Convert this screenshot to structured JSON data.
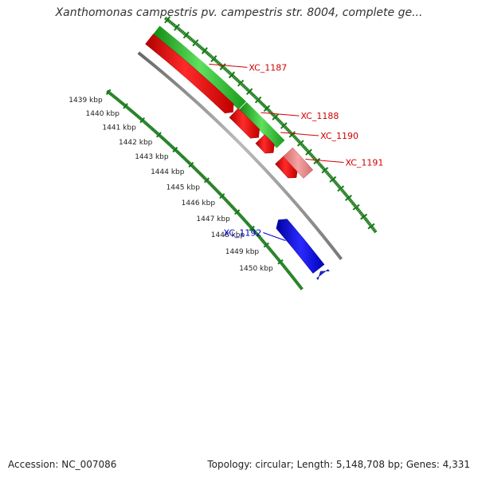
{
  "header": {
    "title": "Xanthomonas campestris pv. campestris str. 8004, complete ge..."
  },
  "footer": {
    "accession": "Accession: NC_007086",
    "summary": "Topology: circular; Length: 5,148,708 bp; Genes: 4,331"
  },
  "colors": {
    "background": "#ffffff",
    "tick": "#1a7a1a",
    "backbone": "#888888",
    "forward_cds": "#ff0000",
    "forward_pseudo": "#f08080",
    "reverse_cds": "#0000ff",
    "second_track": "#22b022",
    "gene_label_red": "#d00000",
    "gene_label_blue": "#0000cc",
    "tick_label": "#222222"
  },
  "ruler": {
    "unit": "kbp",
    "visible_ticks": [
      "1439 kbp",
      "1440 kbp",
      "1441 kbp",
      "1442 kbp",
      "1443 kbp",
      "1444 kbp",
      "1445 kbp",
      "1446 kbp",
      "1447 kbp",
      "1448 kbp",
      "1449 kbp",
      "1450 kbp"
    ]
  },
  "genes": [
    {
      "label": "XC_1187",
      "track": "forward",
      "kind": "cds",
      "color": "red"
    },
    {
      "label": "XC_1188",
      "track": "forward",
      "kind": "cds",
      "color": "red"
    },
    {
      "label": "XC_1190",
      "track": "forward",
      "kind": "cds",
      "color": "red"
    },
    {
      "label": "XC_1191",
      "track": "forward",
      "kind": "pseudo",
      "color": "pink"
    },
    {
      "label": "XC_1192",
      "track": "reverse",
      "kind": "cds",
      "color": "blue"
    }
  ]
}
